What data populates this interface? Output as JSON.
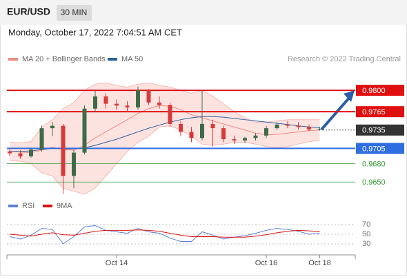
{
  "header": {
    "symbol": "EUR/USD",
    "timeframe": "30 MIN",
    "datetime": "Monday, October 17, 2022 7:04:51 AM CET"
  },
  "chart_data": {
    "type": "candlestick",
    "legend": [
      {
        "name": "MA 20 + Bollinger Bands",
        "color": "#f08a80"
      },
      {
        "name": "MA 50",
        "color": "#2c5ea0"
      }
    ],
    "credit": "Research © 2022 Trading Central",
    "categories": [
      null,
      null,
      null,
      null,
      null,
      null,
      null,
      null,
      null,
      null,
      "Oct 14",
      null,
      null,
      null,
      null,
      null,
      null,
      null,
      null,
      null,
      null,
      null,
      null,
      null,
      "Oct 16",
      null,
      null,
      null,
      null,
      "Oct 18"
    ],
    "open": [
      0.97,
      0.9697,
      0.9692,
      0.9703,
      0.9738,
      0.9742,
      0.966,
      0.9698,
      0.977,
      0.979,
      0.9778,
      0.9775,
      0.9772,
      0.98,
      0.978,
      0.9776,
      0.9745,
      0.9732,
      0.9722,
      0.9745,
      0.9738,
      0.972,
      0.9718,
      0.9722,
      0.9726,
      0.9738,
      0.9744,
      0.9742,
      0.974,
      0.9736
    ],
    "high": [
      0.9706,
      0.9702,
      0.9705,
      0.9742,
      0.9748,
      0.9745,
      0.9702,
      0.9775,
      0.98,
      0.9795,
      0.9785,
      0.9782,
      0.9806,
      0.9802,
      0.979,
      0.978,
      0.975,
      0.974,
      0.98,
      0.9752,
      0.9742,
      0.9726,
      0.9724,
      0.973,
      0.9742,
      0.9748,
      0.975,
      0.9748,
      0.9744,
      0.974
    ],
    "low": [
      0.9693,
      0.9688,
      0.969,
      0.97,
      0.9725,
      0.9631,
      0.964,
      0.9695,
      0.9765,
      0.977,
      0.9768,
      0.9765,
      0.9768,
      0.9776,
      0.977,
      0.974,
      0.9725,
      0.9715,
      0.9718,
      0.9708,
      0.9715,
      0.9712,
      0.9714,
      0.9718,
      0.9722,
      0.9735,
      0.9738,
      0.9736,
      0.9733,
      0.9734
    ],
    "close": [
      0.9697,
      0.9692,
      0.9703,
      0.9738,
      0.9742,
      0.966,
      0.9698,
      0.977,
      0.979,
      0.9778,
      0.9775,
      0.9772,
      0.98,
      0.978,
      0.9776,
      0.9745,
      0.9732,
      0.9722,
      0.9745,
      0.9738,
      0.972,
      0.9718,
      0.9722,
      0.9726,
      0.9738,
      0.9744,
      0.9742,
      0.974,
      0.9736,
      0.9737
    ],
    "up_color": "#3e6b47",
    "down_color": "#d63a3a",
    "ma20": [
      0.97,
      0.9699,
      0.9698,
      0.9702,
      0.9707,
      0.9703,
      0.9702,
      0.971,
      0.9722,
      0.9732,
      0.9742,
      0.9752,
      0.9762,
      0.977,
      0.9775,
      0.9774,
      0.9768,
      0.976,
      0.9755,
      0.975,
      0.9745,
      0.974,
      0.9735,
      0.973,
      0.9727,
      0.9728,
      0.973,
      0.9732,
      0.9734,
      0.9735
    ],
    "ma50": [
      0.97,
      0.97,
      0.9701,
      0.9703,
      0.9705,
      0.9704,
      0.9704,
      0.9706,
      0.971,
      0.9715,
      0.972,
      0.9726,
      0.9732,
      0.9738,
      0.9743,
      0.9748,
      0.9752,
      0.9755,
      0.9757,
      0.9757,
      0.9756,
      0.9754,
      0.9752,
      0.975,
      0.9748,
      0.9746,
      0.9744,
      0.9742,
      0.974,
      0.9739
    ],
    "bb_upper": [
      0.9715,
      0.9714,
      0.9716,
      0.974,
      0.9752,
      0.977,
      0.978,
      0.98,
      0.981,
      0.9812,
      0.9808,
      0.9805,
      0.981,
      0.9812,
      0.9808,
      0.9805,
      0.98,
      0.9795,
      0.98,
      0.979,
      0.9778,
      0.9765,
      0.9755,
      0.9748,
      0.9748,
      0.975,
      0.9752,
      0.9752,
      0.9752,
      0.9752
    ],
    "bb_lower": [
      0.9685,
      0.9684,
      0.968,
      0.9665,
      0.966,
      0.964,
      0.9635,
      0.963,
      0.964,
      0.966,
      0.968,
      0.97,
      0.9715,
      0.9725,
      0.974,
      0.9742,
      0.9735,
      0.9725,
      0.9712,
      0.971,
      0.9712,
      0.9715,
      0.9715,
      0.9712,
      0.9708,
      0.9706,
      0.9708,
      0.9712,
      0.9716,
      0.9718
    ],
    "ylim": [
      0.963,
      0.9835
    ],
    "levels": [
      {
        "value": 0.98,
        "label": "0.9800",
        "color": "#e01010",
        "boxed": true
      },
      {
        "value": 0.9765,
        "label": "0.9765",
        "color": "#e01010",
        "boxed": true
      },
      {
        "value": 0.9735,
        "label": "0.9735",
        "color": "#333333",
        "boxed": true,
        "current": true
      },
      {
        "value": 0.9705,
        "label": "0.9705",
        "color": "#2f6ee0",
        "boxed": true
      },
      {
        "value": 0.968,
        "label": "0.9680",
        "color": "#3a9a3a",
        "boxed": false
      },
      {
        "value": 0.965,
        "label": "0.9650",
        "color": "#3a9a3a",
        "boxed": false
      }
    ],
    "rsi": {
      "legend": [
        {
          "name": "RSI",
          "color": "#5b80d8"
        },
        {
          "name": "9MA",
          "color": "#e01010"
        }
      ],
      "values": [
        45,
        40,
        48,
        62,
        60,
        30,
        45,
        65,
        68,
        58,
        55,
        52,
        62,
        55,
        52,
        42,
        35,
        35,
        55,
        48,
        40,
        44,
        47,
        52,
        58,
        62,
        60,
        56,
        50,
        52
      ],
      "ma": [
        50,
        48,
        46,
        50,
        53,
        49,
        48,
        52,
        56,
        58,
        58,
        58,
        59,
        58,
        56,
        52,
        48,
        45,
        45,
        45,
        44,
        44,
        44,
        46,
        49,
        53,
        56,
        58,
        57,
        55
      ],
      "ylim": [
        10,
        90
      ],
      "yticks": [
        70,
        50,
        30
      ]
    }
  }
}
